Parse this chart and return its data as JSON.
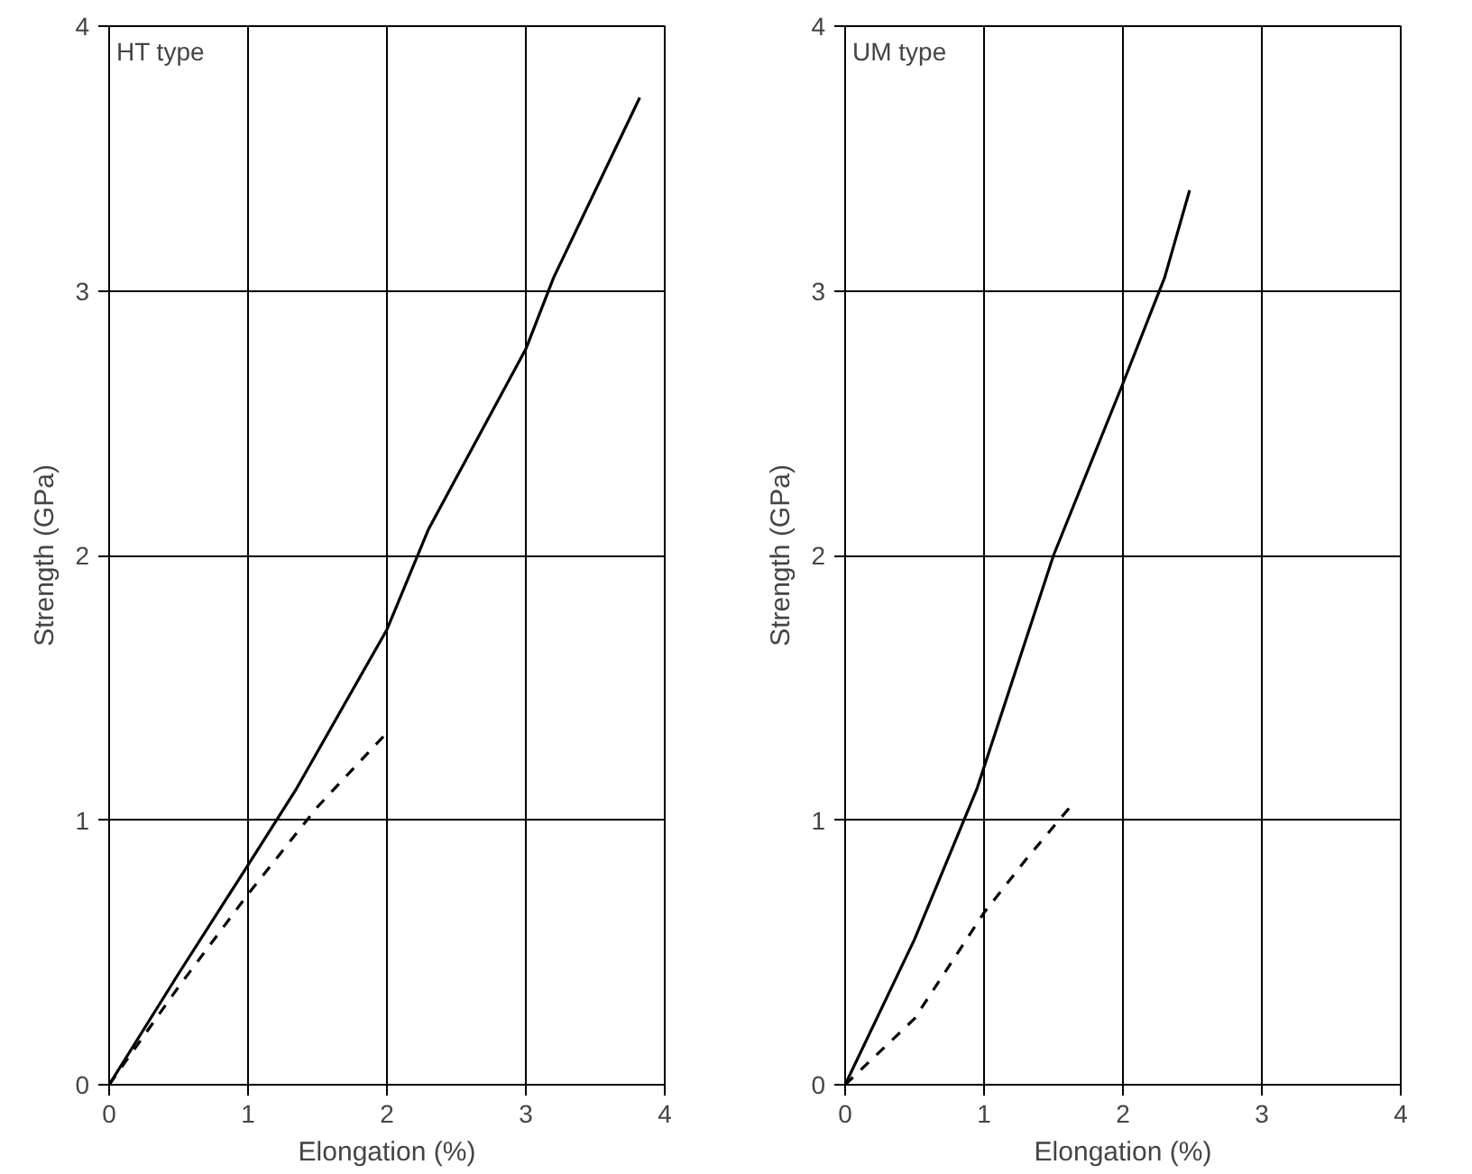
{
  "chart_data": [
    {
      "type": "line",
      "title": "HT type",
      "xlabel": "Elongation (%)",
      "ylabel": "Strength (GPa)",
      "xlim": [
        0,
        4
      ],
      "ylim": [
        0,
        4
      ],
      "xticks": [
        0,
        1,
        2,
        3,
        4
      ],
      "yticks": [
        0,
        1,
        2,
        3,
        4
      ],
      "grid": true,
      "series": [
        {
          "color": "#000000",
          "line_style": "solid",
          "x": [
            0,
            0.5,
            1.0,
            1.35,
            2.0,
            2.3,
            3.0,
            3.2,
            3.82
          ],
          "values": [
            0,
            0.42,
            0.83,
            1.12,
            1.72,
            2.1,
            2.78,
            3.05,
            3.73
          ]
        },
        {
          "color": "#000000",
          "line_style": "dashed",
          "x": [
            0,
            0.5,
            1.0,
            1.5,
            2.0
          ],
          "values": [
            0,
            0.37,
            0.72,
            1.05,
            1.33
          ]
        }
      ]
    },
    {
      "type": "line",
      "title": "UM type",
      "xlabel": "Elongation (%)",
      "ylabel": "Strength (GPa)",
      "xlim": [
        0,
        4
      ],
      "ylim": [
        0,
        4
      ],
      "xticks": [
        0,
        1,
        2,
        3,
        4
      ],
      "yticks": [
        0,
        1,
        2,
        3,
        4
      ],
      "grid": true,
      "series": [
        {
          "color": "#000000",
          "line_style": "solid",
          "x": [
            0,
            0.5,
            0.95,
            1.5,
            2.0,
            2.3,
            2.48
          ],
          "values": [
            0,
            0.55,
            1.12,
            2.0,
            2.65,
            3.05,
            3.38
          ]
        },
        {
          "color": "#000000",
          "line_style": "dashed",
          "x": [
            0,
            0.5,
            1.0,
            1.3,
            1.62
          ],
          "values": [
            0,
            0.25,
            0.65,
            0.85,
            1.05
          ]
        }
      ]
    }
  ]
}
